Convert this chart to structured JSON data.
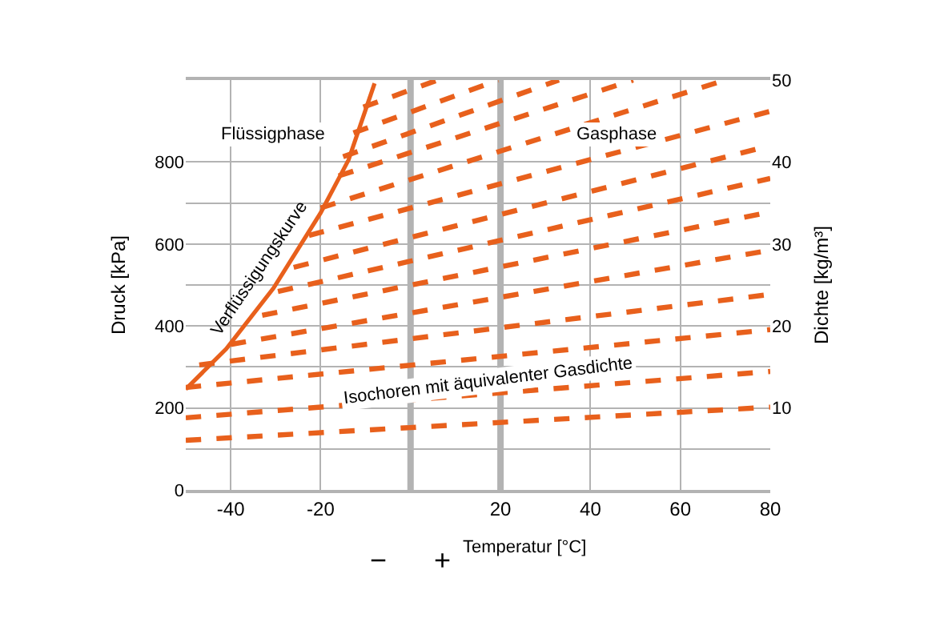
{
  "chart_data": {
    "type": "line",
    "xlabel": "Temperatur [°C]",
    "ylabel": "Druck [kPa]",
    "y2label": "Dichte [kg/m³]",
    "xlim": [
      -50,
      80
    ],
    "xticks": [
      -40,
      -20,
      20,
      40,
      60,
      80
    ],
    "ylim": [
      0,
      1000
    ],
    "yticks": [
      0,
      {
        "value": 100,
        "label": null
      },
      200,
      {
        "value": 300,
        "label": null
      },
      400,
      {
        "value": 500,
        "label": null
      },
      600,
      {
        "value": 700,
        "label": null
      },
      800
    ],
    "y2lim": [
      0,
      50
    ],
    "y2ticks": [
      10,
      20,
      30,
      40,
      50
    ],
    "grid": true,
    "marker": "none",
    "ref_lines": [
      {
        "axis": "x",
        "value": 0,
        "color": "#b3b3b3"
      },
      {
        "axis": "x",
        "value": 20,
        "color": "#b3b3b3"
      }
    ],
    "annotations": [
      "Flüssigphase",
      "Gasphase",
      "Verflüssigungskurve",
      "Isochoren mit äquivalenter Gasdichte",
      "−",
      "+"
    ],
    "series": [
      {
        "color": "#e8601c",
        "line_style": "solid",
        "x": [
          -50,
          -41,
          -30.5,
          -20,
          -13.8,
          -8
        ],
        "values": [
          246,
          344,
          492,
          676,
          805,
          992
        ]
      },
      {
        "color": "#e8601c",
        "line_style": "dashed",
        "x": [
          -50,
          80
        ],
        "values": [
          121,
          202
        ]
      },
      {
        "color": "#e8601c",
        "line_style": "dashed",
        "x": [
          -50,
          80
        ],
        "values": [
          176,
          289
        ]
      },
      {
        "color": "#e8601c",
        "line_style": "dashed",
        "x": [
          -50,
          80
        ],
        "values": [
          250,
          391
        ]
      },
      {
        "color": "#e8601c",
        "line_style": "dashed",
        "x": [
          -47,
          80
        ],
        "values": [
          305,
          477
        ]
      },
      {
        "color": "#e8601c",
        "line_style": "dashed",
        "x": [
          -40,
          80
        ],
        "values": [
          355,
          585
        ]
      },
      {
        "color": "#e8601c",
        "line_style": "dashed",
        "x": [
          -33,
          80
        ],
        "values": [
          426,
          678
        ]
      },
      {
        "color": "#e8601c",
        "line_style": "dashed",
        "x": [
          -29.5,
          80
        ],
        "values": [
          484,
          760
        ]
      },
      {
        "color": "#e8601c",
        "line_style": "dashed",
        "x": [
          -26,
          80
        ],
        "values": [
          543,
          840
        ]
      },
      {
        "color": "#e8601c",
        "line_style": "dashed",
        "x": [
          -22.6,
          80
        ],
        "values": [
          621,
          924
        ]
      },
      {
        "color": "#e8601c",
        "line_style": "dashed",
        "x": [
          -20,
          70
        ],
        "values": [
          688,
          1000
        ]
      },
      {
        "color": "#e8601c",
        "line_style": "dashed",
        "x": [
          -16,
          49.5
        ],
        "values": [
          766,
          1000
        ]
      },
      {
        "color": "#e8601c",
        "line_style": "dashed",
        "x": [
          -15,
          33
        ],
        "values": [
          813,
          1000
        ]
      },
      {
        "color": "#e8601c",
        "line_style": "dashed",
        "x": [
          -12.7,
          19.5
        ],
        "values": [
          871,
          1000
        ]
      },
      {
        "color": "#e8601c",
        "line_style": "dashed",
        "x": [
          -10.5,
          6
        ],
        "values": [
          934,
          1000
        ]
      }
    ]
  }
}
